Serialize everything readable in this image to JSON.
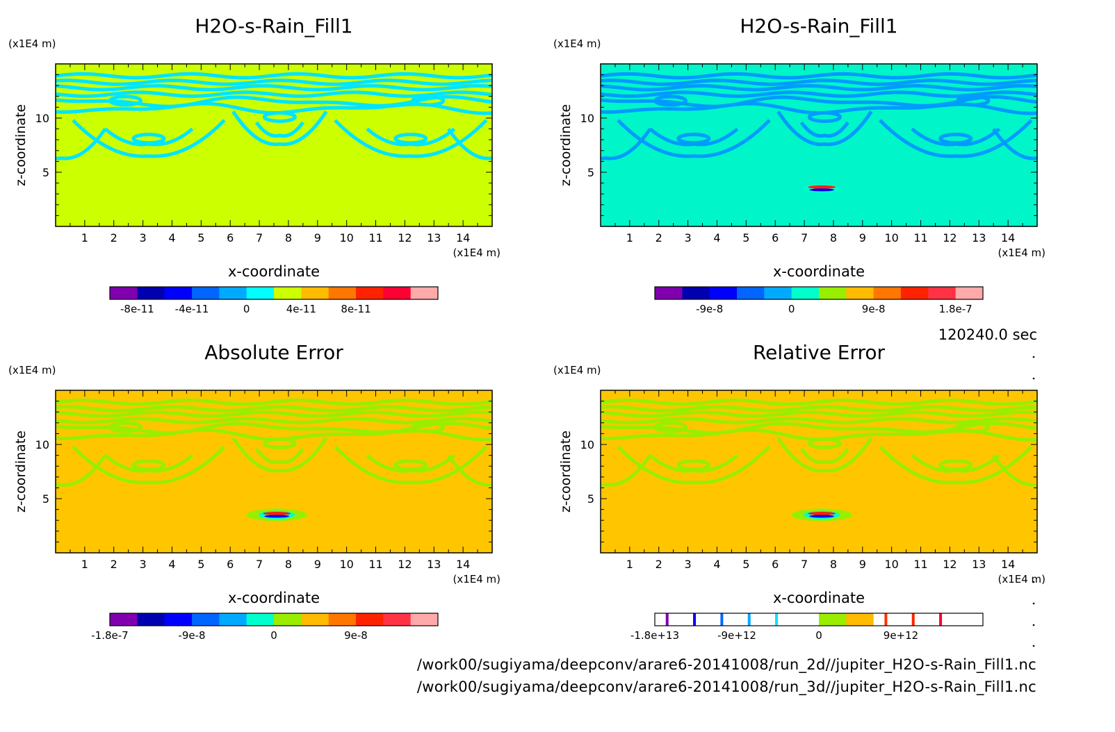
{
  "chart_data": [
    {
      "type": "heatmap",
      "title": "H2O-s-Rain_Fill1",
      "xlabel": "x-coordinate",
      "ylabel": "z-coordinate",
      "x_unit": "(x1E4 m)",
      "y_unit": "(x1E4 m)",
      "x_ticks": [
        "1",
        "2",
        "3",
        "4",
        "5",
        "6",
        "7",
        "8",
        "9",
        "10",
        "11",
        "12",
        "13",
        "14"
      ],
      "y_ticks": [
        "5",
        "10"
      ],
      "xlim": [
        0,
        15
      ],
      "ylim": [
        0,
        15
      ],
      "background": "#ccff00",
      "pattern_color": "#00e5ff",
      "colorbar": {
        "colors": [
          "#8000b0",
          "#0000b0",
          "#0000ff",
          "#0066ff",
          "#00aaff",
          "#00ffff",
          "#ccff00",
          "#ffbb00",
          "#ff7700",
          "#ff2200",
          "#ff0033",
          "#ffaaaa"
        ],
        "labels": [
          "-8e-11",
          "-4e-11",
          "0",
          "4e-11",
          "8e-11"
        ],
        "label_positions": [
          1,
          3,
          5,
          7,
          9
        ]
      }
    },
    {
      "type": "heatmap",
      "title": "H2O-s-Rain_Fill1",
      "xlabel": "x-coordinate",
      "ylabel": "z-coordinate",
      "x_unit": "(x1E4 m)",
      "y_unit": "(x1E4 m)",
      "x_ticks": [
        "1",
        "2",
        "3",
        "4",
        "5",
        "6",
        "7",
        "8",
        "9",
        "10",
        "11",
        "12",
        "13",
        "14"
      ],
      "y_ticks": [
        "5",
        "10"
      ],
      "xlim": [
        0,
        15
      ],
      "ylim": [
        0,
        15
      ],
      "background": "#00f5c8",
      "pattern_color": "#009bff",
      "colorbar": {
        "colors": [
          "#8000b0",
          "#0000b0",
          "#0000ff",
          "#0066ff",
          "#00aaff",
          "#00ffcc",
          "#99ee00",
          "#ffbb00",
          "#ff7700",
          "#ff2200",
          "#ff3344",
          "#ffaaaa"
        ],
        "labels": [
          "-9e-8",
          "0",
          "9e-8",
          "1.8e-7"
        ],
        "label_positions": [
          2,
          5,
          8,
          11
        ]
      }
    },
    {
      "type": "heatmap",
      "title": "Absolute Error",
      "xlabel": "x-coordinate",
      "ylabel": "z-coordinate",
      "x_unit": "(x1E4 m)",
      "y_unit": "(x1E4 m)",
      "x_ticks": [
        "1",
        "2",
        "3",
        "4",
        "5",
        "6",
        "7",
        "8",
        "9",
        "10",
        "11",
        "12",
        "13",
        "14"
      ],
      "y_ticks": [
        "5",
        "10"
      ],
      "xlim": [
        0,
        15
      ],
      "ylim": [
        0,
        15
      ],
      "background": "#ffc600",
      "pattern_color": "#99ee00",
      "colorbar": {
        "colors": [
          "#8000b0",
          "#0000b0",
          "#0000ff",
          "#0066ff",
          "#00aaff",
          "#00ffcc",
          "#99ee00",
          "#ffbb00",
          "#ff7700",
          "#ff2200",
          "#ff3344",
          "#ffaaaa"
        ],
        "labels": [
          "-1.8e-7",
          "-9e-8",
          "0",
          "9e-8"
        ],
        "label_positions": [
          0,
          3,
          6,
          9
        ]
      }
    },
    {
      "type": "heatmap",
      "title": "Relative Error",
      "xlabel": "x-coordinate",
      "ylabel": "z-coordinate",
      "x_unit": "(x1E4 m)",
      "y_unit": "(x1E4 m)",
      "x_ticks": [
        "1",
        "2",
        "3",
        "4",
        "5",
        "6",
        "7",
        "8",
        "9",
        "10",
        "11",
        "12",
        "13",
        "14"
      ],
      "y_ticks": [
        "5",
        "10"
      ],
      "xlim": [
        0,
        15
      ],
      "ylim": [
        0,
        15
      ],
      "background": "#ffc600",
      "pattern_color": "#99ee00",
      "colorbar": {
        "colors": [
          "#ffffff",
          "#ffffff",
          "#ffffff",
          "#ffffff",
          "#ffffff",
          "#ffffff",
          "#99ee00",
          "#ffbb00",
          "#ffffff",
          "#ffffff",
          "#ffffff",
          "#ffffff"
        ],
        "stripes": [
          "#8000b0",
          "#0000ff",
          "#0066ff",
          "#00aaff",
          "#00e5ff",
          "",
          "",
          "",
          "#ff3300",
          "#ff2200",
          "#ff0033",
          ""
        ],
        "labels": [
          "-1.8e+13",
          "-9e+12",
          "0",
          "9e+12"
        ],
        "label_positions": [
          0,
          3,
          6,
          9
        ]
      }
    }
  ],
  "time_label": "120240.0 sec",
  "file_paths": [
    "/work00/sugiyama/deepconv/arare6-20141008/run_2d//jupiter_H2O-s-Rain_Fill1.nc",
    "/work00/sugiyama/deepconv/arare6-20141008/run_3d//jupiter_H2O-s-Rain_Fill1.nc"
  ]
}
